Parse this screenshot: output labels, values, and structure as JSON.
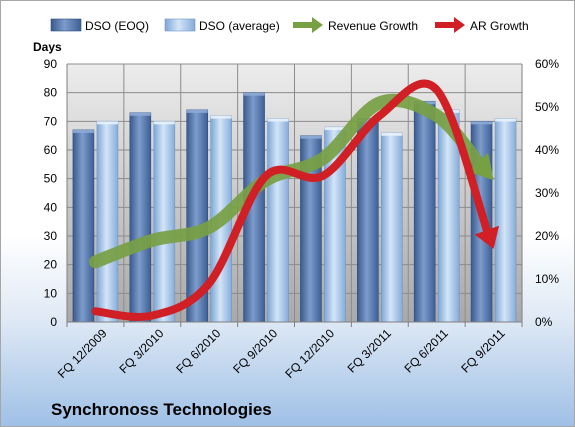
{
  "chart_data": {
    "type": "bar",
    "title": "Synchronoss Technologies",
    "ylabel": "Days",
    "ylim": [
      0,
      90
    ],
    "y_ticks": [
      "0",
      "10",
      "20",
      "30",
      "40",
      "50",
      "60",
      "70",
      "80",
      "90"
    ],
    "y2lim": [
      0,
      60
    ],
    "y2_ticks": [
      "0%",
      "10%",
      "20%",
      "30%",
      "40%",
      "50%",
      "60%"
    ],
    "categories": [
      "FQ 12/2009",
      "FQ 3/2010",
      "FQ 6/2010",
      "FQ 9/2010",
      "FQ 12/2010",
      "FQ 3/2011",
      "FQ 6/2011",
      "FQ 9/2011"
    ],
    "bar_series": [
      {
        "name": "DSO (EOQ)",
        "color": "#4f6fa3",
        "values": [
          67,
          73,
          74,
          80,
          65,
          71,
          77,
          70
        ]
      },
      {
        "name": "DSO (average)",
        "color": "#a9c8ec",
        "values": [
          70,
          70,
          72,
          71,
          68,
          66,
          74,
          71
        ]
      }
    ],
    "line_series": [
      {
        "name": "Revenue Growth",
        "color": "#77a043",
        "axis": "secondary",
        "values": [
          14,
          19,
          22,
          33,
          38,
          51,
          48,
          33
        ]
      },
      {
        "name": "AR Growth",
        "color": "#d11f26",
        "axis": "secondary",
        "values": [
          2.5,
          1.5,
          9,
          34,
          34,
          48,
          54,
          17
        ]
      }
    ],
    "grid": true,
    "legend": "top"
  }
}
